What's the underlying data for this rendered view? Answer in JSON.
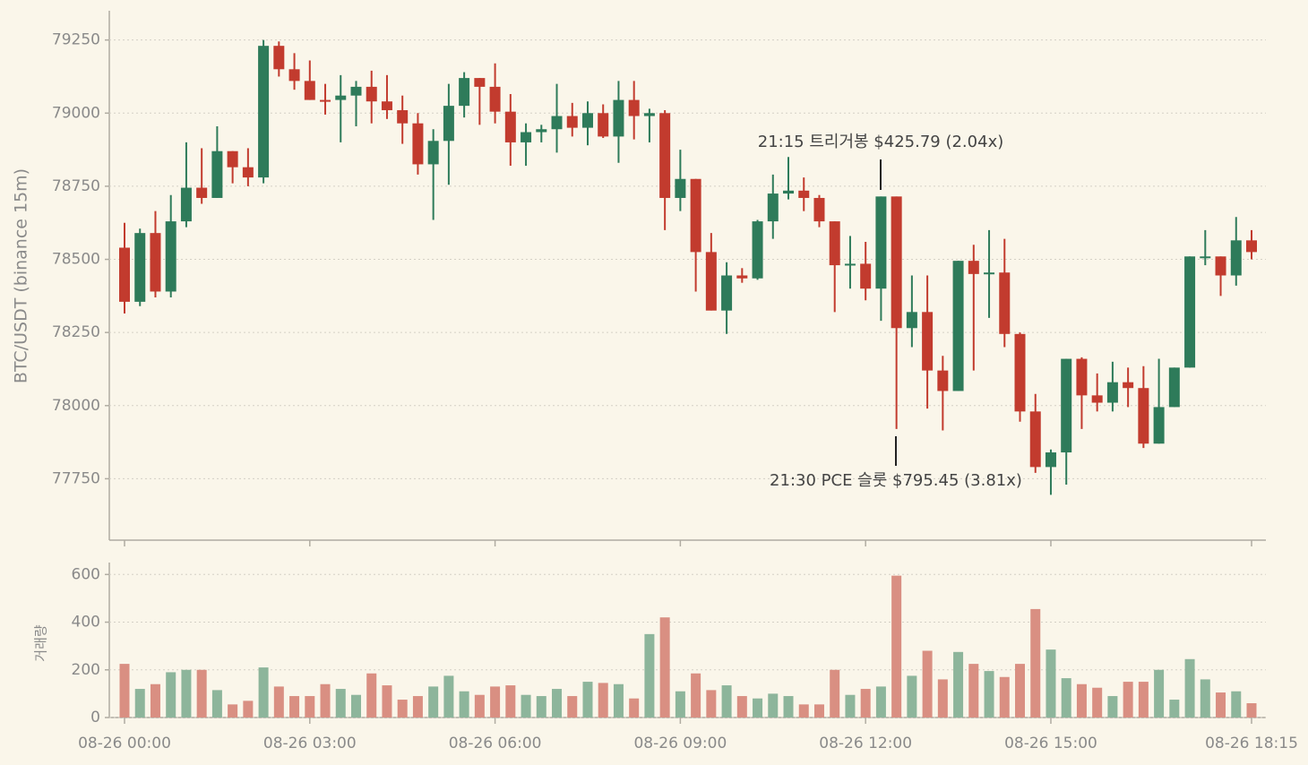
{
  "chart_data": {
    "type": "candlestick",
    "y_label": "BTC/USDT (binance 15m)",
    "volume_label": "거래량",
    "up_color": "#2e7b5a",
    "down_color": "#c23b2e",
    "volume_up_color": "#8db59b",
    "volume_down_color": "#d98f82",
    "grid": true,
    "categories": [
      "08-26 00:00",
      null,
      null,
      null,
      null,
      null,
      null,
      null,
      null,
      null,
      null,
      null,
      "08-26 03:00",
      null,
      null,
      null,
      null,
      null,
      null,
      null,
      null,
      null,
      null,
      null,
      "08-26 06:00",
      null,
      null,
      null,
      null,
      null,
      null,
      null,
      null,
      null,
      null,
      null,
      "08-26 09:00",
      null,
      null,
      null,
      null,
      null,
      null,
      null,
      null,
      null,
      null,
      null,
      "08-26 12:00",
      null,
      null,
      null,
      null,
      null,
      null,
      null,
      null,
      null,
      null,
      null,
      "08-26 15:00",
      null,
      null,
      null,
      null,
      null,
      null,
      null,
      null,
      null,
      null,
      null,
      null,
      "08-26 18:15"
    ],
    "open": [
      78540,
      78355,
      78590,
      78390,
      78630,
      78745,
      78710,
      78870,
      78815,
      78780,
      79230,
      79150,
      79110,
      79045,
      79045,
      79060,
      79090,
      79040,
      79010,
      78965,
      78825,
      78905,
      79025,
      79120,
      79090,
      79005,
      78900,
      78935,
      78945,
      78990,
      78950,
      79000,
      78920,
      79045,
      78990,
      79000,
      78710,
      78775,
      78525,
      78325,
      78445,
      78435,
      78630,
      78725,
      78735,
      78710,
      78630,
      78480,
      78485,
      78400,
      78715,
      78265,
      78320,
      78120,
      78050,
      78495,
      78450,
      78455,
      78245,
      77980,
      77790,
      77840,
      78160,
      78035,
      78010,
      78080,
      78060,
      77870,
      77995,
      78130,
      78505,
      78510,
      78445,
      78565
    ],
    "high": [
      78625,
      78605,
      78665,
      78720,
      78900,
      78880,
      78955,
      78870,
      78880,
      79250,
      79245,
      79205,
      79180,
      79100,
      79130,
      79110,
      79145,
      79130,
      79060,
      79000,
      78945,
      79100,
      79140,
      79120,
      79170,
      79065,
      78965,
      78960,
      79100,
      79035,
      79040,
      79030,
      79110,
      79110,
      79015,
      79010,
      78875,
      78775,
      78590,
      78490,
      78470,
      78635,
      78790,
      78850,
      78780,
      78720,
      78630,
      78580,
      78560,
      78715,
      78715,
      78445,
      78445,
      78170,
      78495,
      78550,
      78600,
      78570,
      78250,
      78040,
      77850,
      78160,
      78165,
      78110,
      78150,
      78130,
      78135,
      78160,
      78130,
      78510,
      78600,
      78510,
      78645,
      78600
    ],
    "low": [
      78315,
      78340,
      78370,
      78370,
      78610,
      78690,
      78710,
      78760,
      78750,
      78760,
      79125,
      79080,
      79045,
      78995,
      78900,
      78955,
      78965,
      78980,
      78895,
      78790,
      78635,
      78755,
      78985,
      78960,
      78965,
      78820,
      78820,
      78900,
      78865,
      78920,
      78890,
      78915,
      78830,
      78910,
      78900,
      78600,
      78665,
      78390,
      78325,
      78245,
      78420,
      78430,
      78570,
      78705,
      78665,
      78610,
      78320,
      78400,
      78360,
      78290,
      77920,
      78200,
      77990,
      77915,
      78050,
      78120,
      78300,
      78200,
      77945,
      77770,
      77695,
      77730,
      77920,
      77980,
      77980,
      77995,
      77855,
      77870,
      77995,
      78130,
      78480,
      78375,
      78410,
      78500
    ],
    "close": [
      78355,
      78590,
      78390,
      78630,
      78745,
      78710,
      78870,
      78815,
      78780,
      79230,
      79150,
      79110,
      79045,
      79040,
      79060,
      79090,
      79040,
      79010,
      78965,
      78825,
      78905,
      79025,
      79120,
      79090,
      79005,
      78900,
      78935,
      78945,
      78990,
      78950,
      79000,
      78920,
      79045,
      78990,
      79000,
      78710,
      78775,
      78525,
      78325,
      78445,
      78435,
      78630,
      78725,
      78735,
      78710,
      78630,
      78480,
      78485,
      78400,
      78715,
      78265,
      78320,
      78120,
      78050,
      78495,
      78450,
      78455,
      78245,
      77980,
      77790,
      77840,
      78160,
      78035,
      78010,
      78080,
      78060,
      77870,
      77995,
      78130,
      78510,
      78510,
      78445,
      78565,
      78525
    ],
    "volume": [
      225,
      120,
      140,
      190,
      200,
      200,
      115,
      55,
      70,
      210,
      130,
      90,
      90,
      140,
      120,
      95,
      185,
      135,
      75,
      90,
      130,
      175,
      110,
      95,
      130,
      135,
      95,
      90,
      120,
      90,
      150,
      145,
      140,
      80,
      350,
      420,
      110,
      185,
      115,
      135,
      90,
      80,
      100,
      90,
      55,
      55,
      200,
      95,
      120,
      130,
      595,
      175,
      280,
      160,
      275,
      225,
      195,
      170,
      225,
      455,
      285,
      165,
      140,
      125,
      90,
      150,
      150,
      200,
      75,
      245,
      160,
      105,
      110,
      60
    ],
    "ylim": [
      77540,
      79350
    ],
    "yticks": [
      77750,
      78000,
      78250,
      78500,
      78750,
      79000,
      79250
    ],
    "volume_ylim": [
      0,
      650
    ],
    "volume_yticks": [
      0,
      200,
      400,
      600
    ],
    "annotations": [
      "21:15 트리거봉 $425.79 (2.04x)",
      "21:30 PCE 슬룻 $795.45 (3.81x)"
    ]
  }
}
